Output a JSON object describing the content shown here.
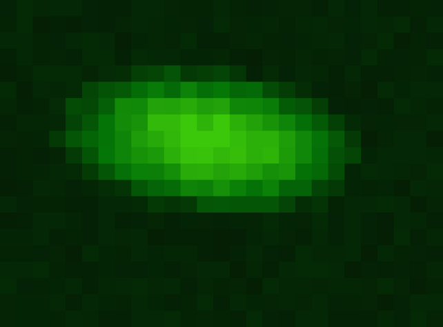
{
  "image": {
    "description_kind": "pixelated green fluorescence micrograph",
    "grid": {
      "columns": 27,
      "rows": 20
    },
    "palette": {
      "background": "#061006",
      "dark": "#0c260c",
      "mid": "#1f5a10",
      "bright": "#2f8f08",
      "peak": "#46c40a"
    },
    "blob": {
      "center_col": 12.7,
      "center_row": 8.6,
      "radius_cols": 8.4,
      "radius_rows": 4.0,
      "rotation_deg": 7
    }
  }
}
